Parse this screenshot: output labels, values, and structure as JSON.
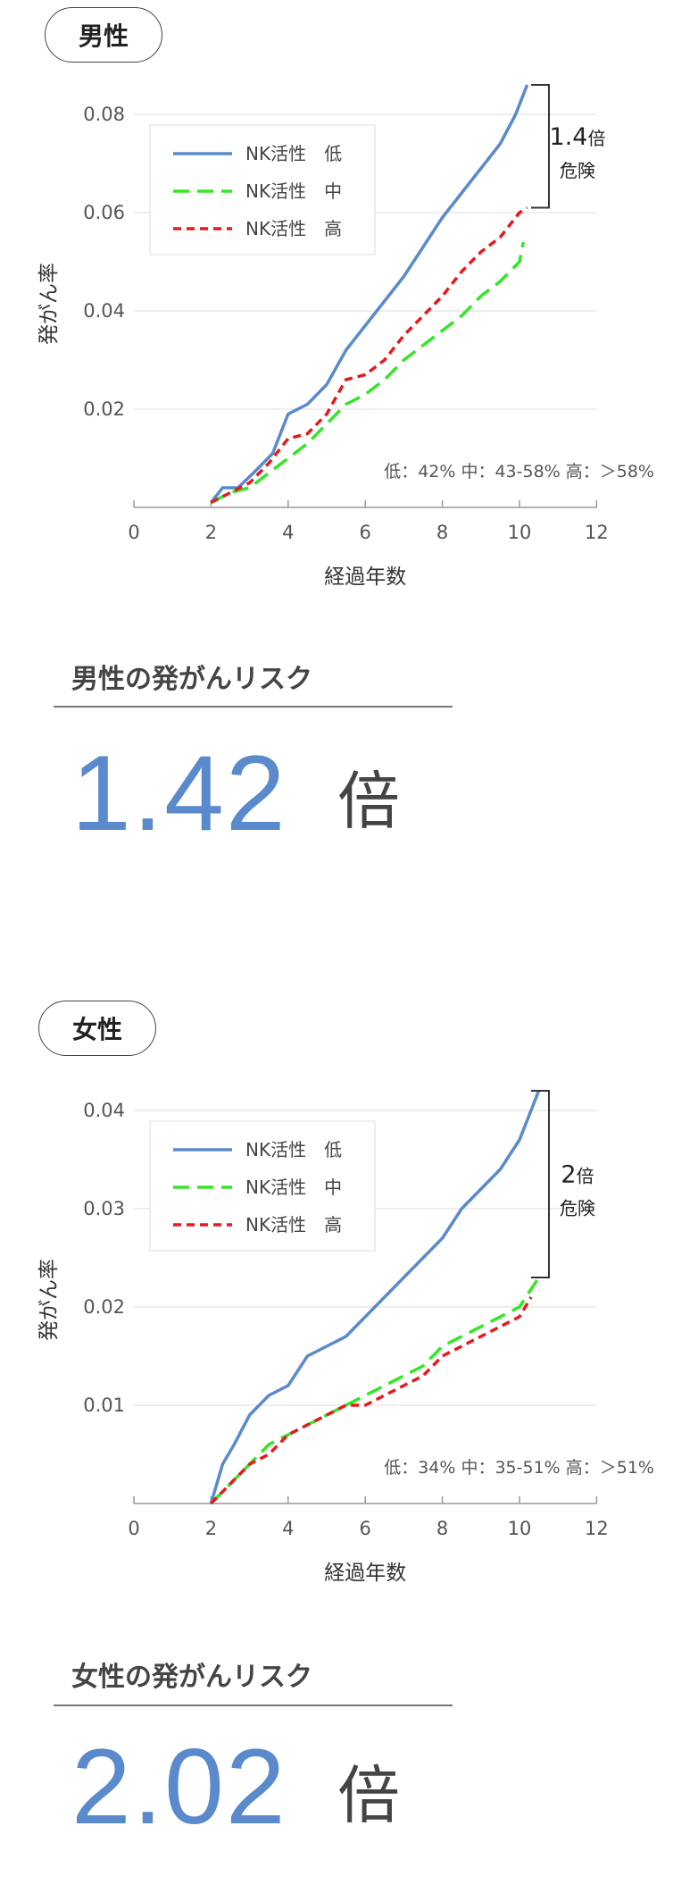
{
  "chart_data": [
    {
      "type": "line",
      "section_label": "男性",
      "xlabel": "経過年数",
      "ylabel": "発がん率",
      "xlim": [
        0,
        12
      ],
      "ylim": [
        0,
        0.08
      ],
      "x_ticks": [
        "0",
        "2",
        "4",
        "6",
        "8",
        "10",
        "12"
      ],
      "y_ticks": [
        "0.02",
        "0.04",
        "0.06",
        "0.08"
      ],
      "legend_position": "top-left",
      "annotation_ratio": "1.4",
      "annotation_unit": "倍",
      "annotation_risk": "危険",
      "group_note": "低：42% 中：43-58% 高：＞58%",
      "series": [
        {
          "name": "NK活性　低",
          "color": "#5a8acb",
          "style": "solid",
          "x": [
            2,
            2.3,
            2.7,
            3.1,
            3.6,
            4.0,
            4.5,
            5.0,
            5.5,
            6.0,
            6.5,
            7.0,
            7.5,
            8.0,
            8.5,
            9.0,
            9.5,
            9.9,
            10.2
          ],
          "y": [
            0.001,
            0.004,
            0.004,
            0.007,
            0.011,
            0.019,
            0.021,
            0.025,
            0.032,
            0.037,
            0.042,
            0.047,
            0.053,
            0.059,
            0.064,
            0.069,
            0.074,
            0.08,
            0.086
          ]
        },
        {
          "name": "NK活性　中",
          "color": "#33e626",
          "style": "long-dash",
          "x": [
            2,
            2.5,
            3.0,
            3.5,
            4.0,
            4.5,
            5.0,
            5.5,
            6.0,
            6.5,
            7.0,
            7.5,
            8.0,
            8.5,
            9.0,
            9.5,
            10.0,
            10.1
          ],
          "y": [
            0.001,
            0.003,
            0.004,
            0.007,
            0.01,
            0.013,
            0.017,
            0.021,
            0.023,
            0.026,
            0.03,
            0.033,
            0.036,
            0.039,
            0.043,
            0.046,
            0.05,
            0.054
          ]
        },
        {
          "name": "NK活性　高",
          "color": "#e8191e",
          "style": "short-dash",
          "x": [
            2,
            2.5,
            3.0,
            3.5,
            4.0,
            4.5,
            5.0,
            5.5,
            6.0,
            6.5,
            7.0,
            7.5,
            8.0,
            8.5,
            9.0,
            9.5,
            10.0,
            10.2
          ],
          "y": [
            0.001,
            0.003,
            0.005,
            0.009,
            0.014,
            0.015,
            0.019,
            0.026,
            0.027,
            0.03,
            0.035,
            0.039,
            0.043,
            0.048,
            0.052,
            0.055,
            0.06,
            0.061
          ]
        }
      ]
    },
    {
      "type": "line",
      "section_label": "女性",
      "xlabel": "経過年数",
      "ylabel": "発がん率",
      "xlim": [
        0,
        12
      ],
      "ylim": [
        0,
        0.04
      ],
      "x_ticks": [
        "0",
        "2",
        "4",
        "6",
        "8",
        "10",
        "12"
      ],
      "y_ticks": [
        "0.01",
        "0.02",
        "0.03",
        "0.04"
      ],
      "legend_position": "top-left",
      "annotation_ratio": "2",
      "annotation_unit": "倍",
      "annotation_risk": "危険",
      "group_note": "低：34% 中：35-51% 高：＞51%",
      "series": [
        {
          "name": "NK活性　低",
          "color": "#5a8acb",
          "style": "solid",
          "x": [
            2,
            2.3,
            2.6,
            3.0,
            3.5,
            4.0,
            4.5,
            5.0,
            5.5,
            6.0,
            6.5,
            7.0,
            7.5,
            8.0,
            8.5,
            9.0,
            9.5,
            10.0,
            10.5
          ],
          "y": [
            0.0,
            0.004,
            0.006,
            0.009,
            0.011,
            0.012,
            0.015,
            0.016,
            0.017,
            0.019,
            0.021,
            0.023,
            0.025,
            0.027,
            0.03,
            0.032,
            0.034,
            0.037,
            0.042
          ]
        },
        {
          "name": "NK活性　中",
          "color": "#33e626",
          "style": "long-dash",
          "x": [
            2,
            2.5,
            3.0,
            3.5,
            4.0,
            4.5,
            5.0,
            5.5,
            6.0,
            6.5,
            7.0,
            7.5,
            8.0,
            8.5,
            9.0,
            9.5,
            10.0,
            10.5
          ],
          "y": [
            0.0,
            0.002,
            0.004,
            0.006,
            0.007,
            0.008,
            0.009,
            0.01,
            0.011,
            0.012,
            0.013,
            0.014,
            0.016,
            0.017,
            0.018,
            0.019,
            0.02,
            0.023
          ]
        },
        {
          "name": "NK活性　高",
          "color": "#e8191e",
          "style": "short-dash",
          "x": [
            2,
            2.5,
            3.0,
            3.5,
            4.0,
            4.5,
            5.0,
            5.5,
            6.0,
            6.5,
            7.0,
            7.5,
            8.0,
            8.5,
            9.0,
            9.5,
            10.0,
            10.3
          ],
          "y": [
            0.0,
            0.002,
            0.004,
            0.005,
            0.007,
            0.008,
            0.009,
            0.01,
            0.01,
            0.011,
            0.012,
            0.013,
            0.015,
            0.016,
            0.017,
            0.018,
            0.019,
            0.021
          ]
        }
      ]
    }
  ],
  "male_risk": {
    "title": "男性の発がんリスク",
    "value": "1.42",
    "unit": "倍"
  },
  "female_risk": {
    "title": "女性の発がんリスク",
    "value": "2.02",
    "unit": "倍"
  }
}
